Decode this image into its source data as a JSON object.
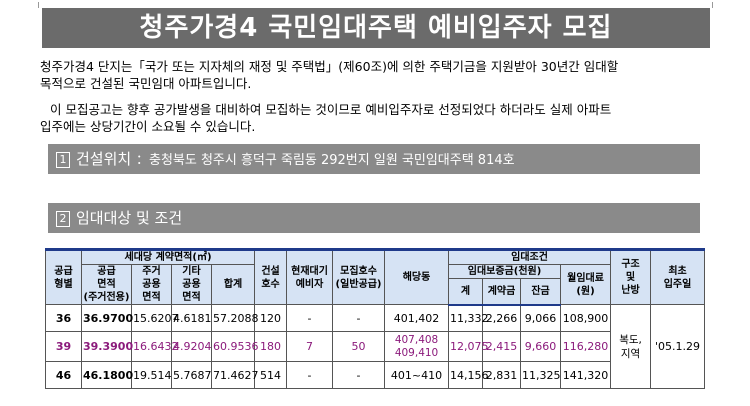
{
  "title": "청주가경4 국민임대주택 예비입주자 모집",
  "intro": {
    "para1_line1": "청주가경4 단지는「국가 또는 지자체의 재정 및 주택법」(제60조)에 의한 주택기금을 지원받아 30년간 임대할",
    "para1_line2": "목적으로 건설된 국민임대 아파트입니다.",
    "para2_line1": "이 모집공고는 향후 공가발생을 대비하여 모집하는 것이므로 예비입주자로 선정되었다 하더라도 실제 아파트",
    "para2_line2": "입주에는 상당기간이 소요될 수 있습니다."
  },
  "section1": {
    "number": "1",
    "label": "건설위치",
    "detail": "：충청북도 청주시 흥덕구 죽림동 292번지 일원 국민임대주택 814호"
  },
  "section2": {
    "number": "2",
    "label": "임대대상 및 조건"
  },
  "table": {
    "headers": {
      "supply_type": [
        "공급",
        "형별"
      ],
      "area_group": "세대당 계약면적(㎡)",
      "supply_area": [
        "공급",
        "면적",
        "(주거전용)"
      ],
      "residential_common": [
        "주거",
        "공용",
        "면적"
      ],
      "other_common": [
        "기타",
        "공용",
        "면적"
      ],
      "total": "합계",
      "built_units": [
        "건설",
        "호수"
      ],
      "waiting": [
        "현재대기",
        "예비자"
      ],
      "recruit_units": [
        "모집호수",
        "(일반공급)"
      ],
      "target_units": "해당동",
      "rent_group": "임대조건",
      "deposit_group": "임대보증금(천원)",
      "deposit_total": "계",
      "contract_fee": "계약금",
      "balance": "잔금",
      "monthly_rent": [
        "월임대료",
        "(원)"
      ],
      "structure": [
        "구조",
        "및",
        "난방"
      ],
      "move_in": [
        "최초",
        "입주일"
      ]
    },
    "rows": [
      {
        "type": "36",
        "supply": "36.9700",
        "res_common": "15.6207",
        "other_common": "4.6181",
        "total": "57.2088",
        "built": "120",
        "waiting": "-",
        "recruit": "-",
        "dong": "401,402",
        "deposit": "11,332",
        "contract": "2,266",
        "balance": "9,066",
        "rent": "108,900"
      },
      {
        "type": "39",
        "supply": "39.3900",
        "res_common": "16.6432",
        "other_common": "4.9204",
        "total": "60.9536",
        "built": "180",
        "waiting": "7",
        "recruit": "50",
        "dong_line1": "407,408",
        "dong_line2": "409,410",
        "deposit": "12,075",
        "contract": "2,415",
        "balance": "9,660",
        "rent": "116,280"
      },
      {
        "type": "46",
        "supply": "46.1800",
        "res_common": "19.514",
        "other_common": "5.7687",
        "total": "71.4627",
        "built": "514",
        "waiting": "-",
        "recruit": "-",
        "dong": "401~410",
        "deposit": "14,156",
        "contract": "2,831",
        "balance": "11,325",
        "rent": "141,320"
      }
    ],
    "structure_value": [
      "복도,",
      "지역"
    ],
    "move_in_value": "'05.1.29"
  },
  "colors": {
    "title_bg": "#6b6b6b",
    "section_bg": "#8a8a8a",
    "header_bg": "#d6e3f4",
    "border_accent": "#1f3a8a",
    "highlight_text": "#8b1a7b"
  }
}
